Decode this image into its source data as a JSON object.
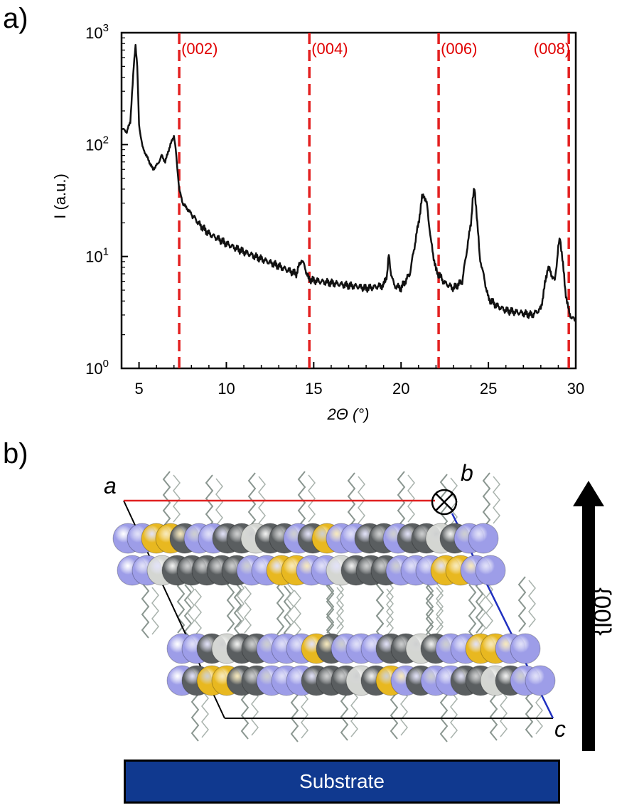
{
  "panel_a_label": "a)",
  "panel_b_label": "b)",
  "chart_data": {
    "type": "line",
    "xlabel": "2Θ (°)",
    "ylabel": "I (a.u.)",
    "xlim": [
      4,
      30
    ],
    "ylim": [
      1,
      1000
    ],
    "yscale": "log",
    "xticks": [
      "5",
      "10",
      "15",
      "20",
      "25",
      "30"
    ],
    "yticks": [
      "10^0",
      "10^1",
      "10^2",
      "10^3"
    ],
    "series": [
      {
        "x": [
          4.0,
          4.3,
          4.5,
          4.7,
          4.8,
          4.9,
          5.0,
          5.2,
          5.5,
          5.8,
          6.1,
          6.3,
          6.5,
          6.7,
          6.9,
          7.0,
          7.1,
          7.2,
          7.3,
          7.5,
          8,
          8.5,
          9,
          9.5,
          10,
          11,
          12,
          13,
          14,
          14.3,
          14.5,
          14.7,
          15,
          16,
          17,
          17.5,
          18,
          19,
          19.2,
          19.3,
          19.4,
          19.6,
          20,
          20.5,
          21,
          21.2,
          21.3,
          21.5,
          21.7,
          22,
          22.5,
          23,
          23.5,
          24,
          24.1,
          24.2,
          24.3,
          24.5,
          25,
          25.5,
          26,
          26.5,
          27,
          27.5,
          28,
          28.4,
          28.6,
          28.8,
          29.0,
          29.1,
          29.2,
          29.4,
          29.6,
          29.8,
          30.0
        ],
        "y": [
          140,
          130,
          160,
          500,
          780,
          500,
          150,
          95,
          75,
          60,
          68,
          80,
          70,
          90,
          110,
          120,
          90,
          60,
          40,
          30,
          24,
          19,
          16,
          14.5,
          13,
          11,
          9.5,
          8.2,
          7,
          9.4,
          8,
          6.3,
          6.1,
          5.8,
          5.5,
          5.4,
          5.2,
          5.5,
          7,
          10.2,
          7.5,
          5.5,
          5.2,
          7,
          20,
          33,
          36,
          28,
          14,
          7.5,
          5.8,
          5.2,
          6,
          20,
          32,
          40,
          28,
          10,
          4.2,
          3.6,
          3.3,
          3.2,
          3.1,
          3.0,
          3.4,
          8,
          7,
          6,
          12,
          14.5,
          11,
          5,
          3.2,
          2.8,
          2.7
        ]
      }
    ],
    "reference_lines": [
      {
        "x": 7.3,
        "label": "(002)"
      },
      {
        "x": 14.75,
        "label": "(004)"
      },
      {
        "x": 22.15,
        "label": "(006)"
      },
      {
        "x": 29.6,
        "label": "(008)"
      }
    ],
    "ref_color": "#e32020",
    "line_color": "#111111"
  },
  "structure": {
    "label_a": "a",
    "label_b": "b",
    "label_c": "c",
    "arrow_label": "{00l}",
    "substrate_label": "Substrate",
    "colors": {
      "nitrogen": "#9d9de8",
      "sulfur": "#e8b820",
      "carbon": "#5a5e60",
      "hydrogen": "#d4d6d2",
      "substrate": "#10398f",
      "axis_a": "#e02020",
      "axis_c": "#2030c0"
    }
  }
}
